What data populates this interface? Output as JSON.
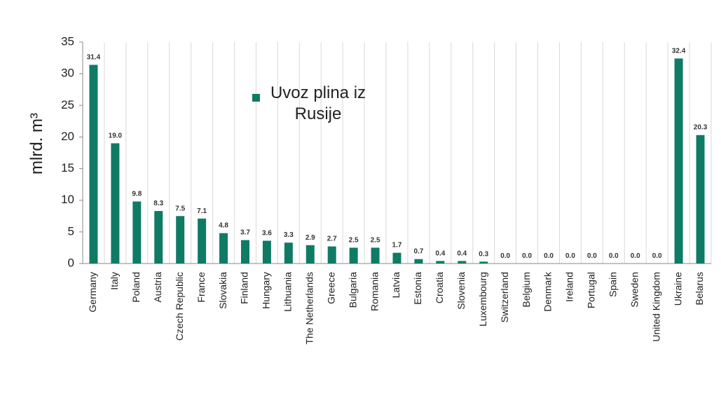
{
  "chart_data": {
    "type": "bar",
    "ylabel": "mlrd. m³",
    "categories": [
      "Germany",
      "Italy",
      "Poland",
      "Austria",
      "Czech Republic",
      "France",
      "Slovakia",
      "Finland",
      "Hungary",
      "Lithuania",
      "The Netherlands",
      "Greece",
      "Bulgaria",
      "Romania",
      "Latvia",
      "Estonia",
      "Croatia",
      "Slovenia",
      "Luxembourg",
      "Switzerland",
      "Belgium",
      "Denmark",
      "Ireland",
      "Portugal",
      "Spain",
      "Sweden",
      "United Kingdom",
      "Ukraine",
      "Belarus"
    ],
    "series": [
      {
        "name": "Uvoz plina iz Rusije",
        "color": "#0f7b65",
        "values": [
          31.4,
          19.0,
          9.8,
          8.3,
          7.5,
          7.1,
          4.8,
          3.7,
          3.6,
          3.3,
          2.9,
          2.7,
          2.5,
          2.5,
          1.7,
          0.7,
          0.4,
          0.4,
          0.3,
          0.0,
          0.0,
          0.0,
          0.0,
          0.0,
          0.0,
          0.0,
          0.0,
          32.4,
          20.3
        ],
        "value_labels": [
          "31.4",
          "19.0",
          "9.8",
          "8.3",
          "7.5",
          "7.1",
          "4.8",
          "3.7",
          "3.6",
          "3.3",
          "2.9",
          "2.7",
          "2.5",
          "2.5",
          "1.7",
          "0.7",
          "0.4",
          "0.4",
          "0.3",
          "0.0",
          "0.0",
          "0.0",
          "0.0",
          "0.0",
          "0.0",
          "0.0",
          "0.0",
          "32.4",
          "20.3"
        ]
      }
    ],
    "ylim": [
      0,
      35
    ],
    "yticks": [
      0,
      5,
      10,
      15,
      20,
      25,
      30,
      35
    ],
    "grid": true
  }
}
